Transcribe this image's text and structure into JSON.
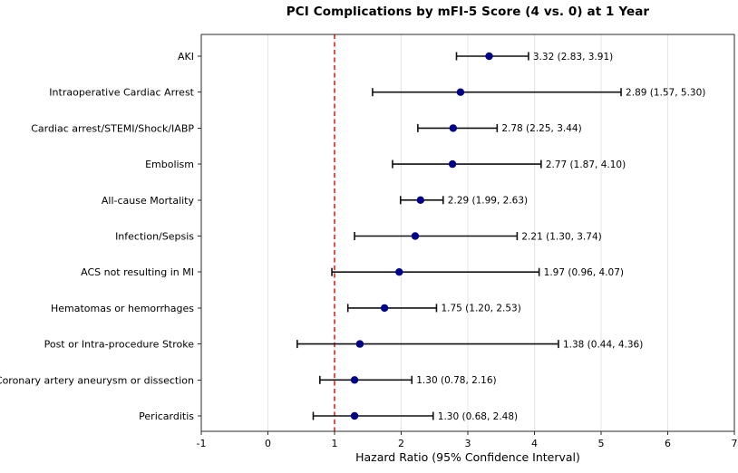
{
  "chart_data": {
    "type": "scatter",
    "subtype": "forest-plot",
    "title": "PCI Complications by mFI-5 Score (4 vs. 0) at 1 Year",
    "xlabel": "Hazard Ratio (95% Confidence Interval)",
    "ylabel": "",
    "xlim": [
      -1,
      7
    ],
    "xticks": [
      -1,
      0,
      1,
      2,
      3,
      4,
      5,
      6,
      7
    ],
    "grid": "vertical-on",
    "legend_position": "none",
    "reference_line": {
      "x": 1,
      "style": "dashed"
    },
    "categories": [
      "AKI",
      "Intraoperative Cardiac Arrest",
      "Cardiac arrest/STEMI/Shock/IABP",
      "Embolism",
      "All-cause Mortality",
      "Infection/Sepsis",
      "ACS not resulting in MI",
      "Hematomas or hemorrhages",
      "Post or Intra-procedure Stroke",
      "Coronary artery aneurysm or dissection",
      "Pericarditis"
    ],
    "series": [
      {
        "name": "Hazard Ratio (95% CI)",
        "points": [
          {
            "label": "AKI",
            "hr": 3.32,
            "ci_low": 2.83,
            "ci_high": 3.91,
            "annotation": "3.32 (2.83, 3.91)"
          },
          {
            "label": "Intraoperative Cardiac Arrest",
            "hr": 2.89,
            "ci_low": 1.57,
            "ci_high": 5.3,
            "annotation": "2.89 (1.57, 5.30)"
          },
          {
            "label": "Cardiac arrest/STEMI/Shock/IABP",
            "hr": 2.78,
            "ci_low": 2.25,
            "ci_high": 3.44,
            "annotation": "2.78 (2.25, 3.44)"
          },
          {
            "label": "Embolism",
            "hr": 2.77,
            "ci_low": 1.87,
            "ci_high": 4.1,
            "annotation": "2.77 (1.87, 4.10)"
          },
          {
            "label": "All-cause Mortality",
            "hr": 2.29,
            "ci_low": 1.99,
            "ci_high": 2.63,
            "annotation": "2.29 (1.99, 2.63)"
          },
          {
            "label": "Infection/Sepsis",
            "hr": 2.21,
            "ci_low": 1.3,
            "ci_high": 3.74,
            "annotation": "2.21 (1.30, 3.74)"
          },
          {
            "label": "ACS not resulting in MI",
            "hr": 1.97,
            "ci_low": 0.96,
            "ci_high": 4.07,
            "annotation": "1.97 (0.96, 4.07)"
          },
          {
            "label": "Hematomas or hemorrhages",
            "hr": 1.75,
            "ci_low": 1.2,
            "ci_high": 2.53,
            "annotation": "1.75 (1.20, 2.53)"
          },
          {
            "label": "Post or Intra-procedure Stroke",
            "hr": 1.38,
            "ci_low": 0.44,
            "ci_high": 4.36,
            "annotation": "1.38 (0.44, 4.36)"
          },
          {
            "label": "Coronary artery aneurysm or dissection",
            "hr": 1.3,
            "ci_low": 0.78,
            "ci_high": 2.16,
            "annotation": "1.30 (0.78, 2.16)"
          },
          {
            "label": "Pericarditis",
            "hr": 1.3,
            "ci_low": 0.68,
            "ci_high": 2.48,
            "annotation": "1.30 (0.68, 2.48)"
          }
        ]
      }
    ],
    "colors": {
      "marker": "#00008b",
      "errorbar": "#111111",
      "reference": "#dd2222",
      "grid": "#e4e4e4",
      "spine": "#2b2b2b",
      "text": "#000000"
    }
  }
}
